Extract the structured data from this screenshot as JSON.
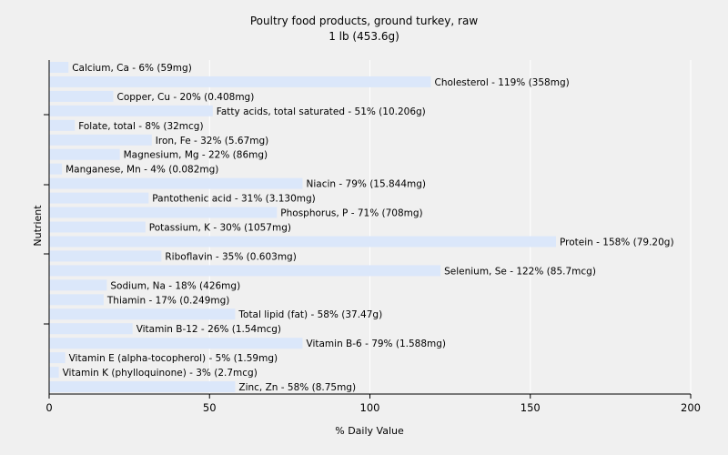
{
  "chart_data": {
    "type": "bar",
    "orientation": "horizontal",
    "title": "Poultry food products, ground turkey, raw",
    "subtitle": "1 lb (453.6g)",
    "xlabel": "% Daily Value",
    "ylabel": "Nutrient",
    "xlim": [
      0,
      200
    ],
    "xticks": [
      0,
      50,
      100,
      150,
      200
    ],
    "grid": true,
    "bar_color": "#dbe7fa",
    "categories": [
      "Calcium, Ca",
      "Cholesterol",
      "Copper, Cu",
      "Fatty acids, total saturated",
      "Folate, total",
      "Iron, Fe",
      "Magnesium, Mg",
      "Manganese, Mn",
      "Niacin",
      "Pantothenic acid",
      "Phosphorus, P",
      "Potassium, K",
      "Protein",
      "Riboflavin",
      "Selenium, Se",
      "Sodium, Na",
      "Thiamin",
      "Total lipid (fat)",
      "Vitamin B-12",
      "Vitamin B-6",
      "Vitamin E (alpha-tocopherol)",
      "Vitamin K (phylloquinone)",
      "Zinc, Zn"
    ],
    "values": [
      6,
      119,
      20,
      51,
      8,
      32,
      22,
      4,
      79,
      31,
      71,
      30,
      158,
      35,
      122,
      18,
      17,
      58,
      26,
      79,
      5,
      3,
      58
    ],
    "labels": [
      "Calcium, Ca - 6% (59mg)",
      "Cholesterol - 119% (358mg)",
      "Copper, Cu - 20% (0.408mg)",
      "Fatty acids, total saturated - 51% (10.206g)",
      "Folate, total - 8% (32mcg)",
      "Iron, Fe - 32% (5.67mg)",
      "Magnesium, Mg - 22% (86mg)",
      "Manganese, Mn - 4% (0.082mg)",
      "Niacin - 79% (15.844mg)",
      "Pantothenic acid - 31% (3.130mg)",
      "Phosphorus, P - 71% (708mg)",
      "Potassium, K - 30% (1057mg)",
      "Protein - 158% (79.20g)",
      "Riboflavin - 35% (0.603mg)",
      "Selenium, Se - 122% (85.7mcg)",
      "Sodium, Na - 18% (426mg)",
      "Thiamin - 17% (0.249mg)",
      "Total lipid (fat) - 58% (37.47g)",
      "Vitamin B-12 - 26% (1.54mcg)",
      "Vitamin B-6 - 79% (1.588mg)",
      "Vitamin E (alpha-tocopherol) - 5% (1.59mg)",
      "Vitamin K (phylloquinone) - 3% (2.7mcg)",
      "Zinc, Zn - 58% (8.75mg)"
    ]
  }
}
